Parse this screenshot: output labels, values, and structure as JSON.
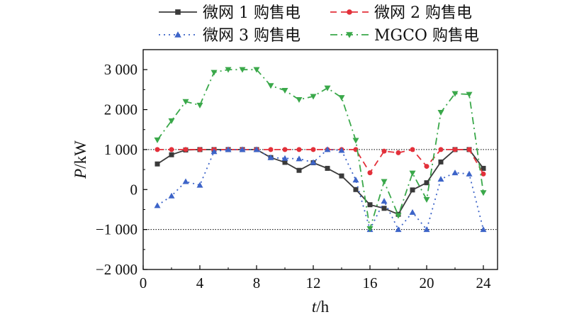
{
  "chart_data": {
    "type": "line",
    "x": [
      1,
      2,
      3,
      4,
      5,
      6,
      7,
      8,
      9,
      10,
      11,
      12,
      13,
      14,
      15,
      16,
      17,
      18,
      19,
      20,
      21,
      22,
      23,
      24
    ],
    "xlim": [
      0,
      25
    ],
    "ylim": [
      -2000,
      3500
    ],
    "xticks": [
      0,
      4,
      8,
      12,
      16,
      20,
      24
    ],
    "yticks": [
      -2000,
      -1000,
      0,
      1000,
      2000,
      3000
    ],
    "ytick_labels": [
      "−2 000",
      "−1 000",
      "0",
      "1 000",
      "2 000",
      "3 000"
    ],
    "xlabel_italic": "t",
    "xlabel_unit": "/h",
    "ylabel_italic": "P",
    "ylabel_unit": "/kW",
    "reference_lines": [
      1000,
      -1000
    ],
    "grid": false,
    "legend_position": "top",
    "series": [
      {
        "name": "微网 1 购售电",
        "color": "#3a3a3a",
        "dash": "solid",
        "marker": "square",
        "values": [
          640,
          870,
          990,
          1000,
          1000,
          1000,
          1000,
          1000,
          800,
          680,
          480,
          670,
          530,
          340,
          0,
          -380,
          -470,
          -620,
          -10,
          170,
          690,
          1000,
          1000,
          530
        ]
      },
      {
        "name": "微网 2 购售电",
        "color": "#e3303a",
        "dash": "dashed",
        "marker": "circle",
        "values": [
          1000,
          1000,
          1000,
          1000,
          1000,
          1000,
          1000,
          1000,
          1000,
          1000,
          1000,
          1000,
          1000,
          1000,
          1000,
          420,
          960,
          920,
          1000,
          580,
          1000,
          1000,
          1000,
          390
        ]
      },
      {
        "name": "微网 3 购售电",
        "color": "#3d64c8",
        "dash": "dotted",
        "marker": "triangle-up",
        "values": [
          -400,
          -160,
          200,
          110,
          950,
          1000,
          1000,
          1000,
          800,
          780,
          770,
          680,
          1000,
          980,
          240,
          -1000,
          -290,
          -1000,
          -570,
          -1000,
          260,
          420,
          390,
          -1000
        ]
      },
      {
        "name": "MGCO 购售电",
        "color": "#3aa84a",
        "dash": "dashdot",
        "marker": "triangle-down",
        "values": [
          1240,
          1720,
          2200,
          2110,
          2930,
          3000,
          3000,
          3000,
          2600,
          2480,
          2250,
          2330,
          2540,
          2300,
          1230,
          -980,
          200,
          -650,
          410,
          -250,
          1930,
          2400,
          2380,
          -80
        ]
      }
    ]
  }
}
